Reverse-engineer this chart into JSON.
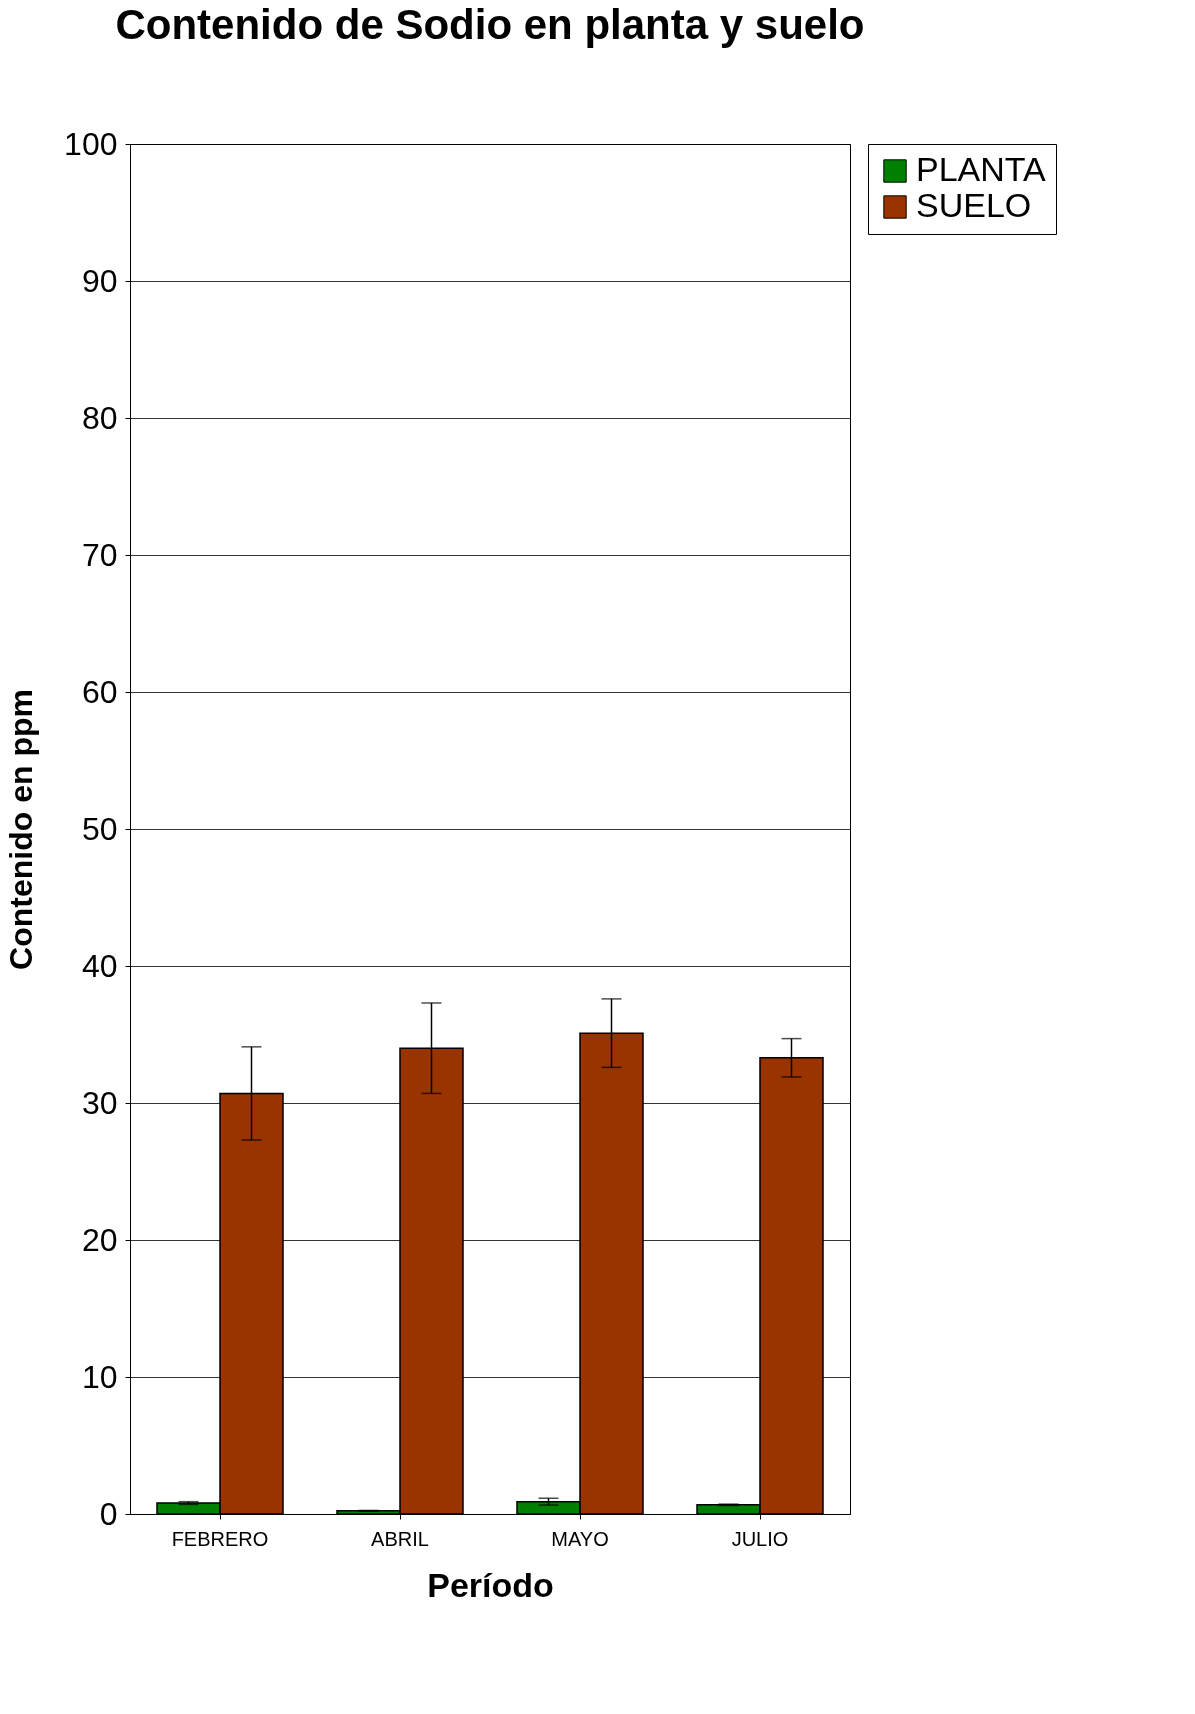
{
  "chart_data": {
    "type": "bar",
    "title": "Contenido de Sodio en planta y suelo",
    "xlabel": "Período",
    "ylabel": "Contenido en ppm",
    "categories": [
      "FEBRERO",
      "ABRIL",
      "MAYO",
      "JULIO"
    ],
    "series": [
      {
        "name": "PLANTA",
        "color": "#008000",
        "values": [
          0.8,
          0.23,
          0.9,
          0.67
        ],
        "errors": [
          0.1,
          0.03,
          0.25,
          0.05
        ]
      },
      {
        "name": "SUELO",
        "color": "#993300",
        "values": [
          30.7,
          34.0,
          35.1,
          33.3
        ],
        "errors": [
          3.4,
          3.3,
          2.5,
          1.4
        ]
      }
    ],
    "ylim": [
      0,
      100
    ],
    "yticks": [
      0,
      10,
      20,
      30,
      40,
      50,
      60,
      70,
      80,
      90,
      100
    ],
    "grid": "y",
    "legend": "right"
  }
}
